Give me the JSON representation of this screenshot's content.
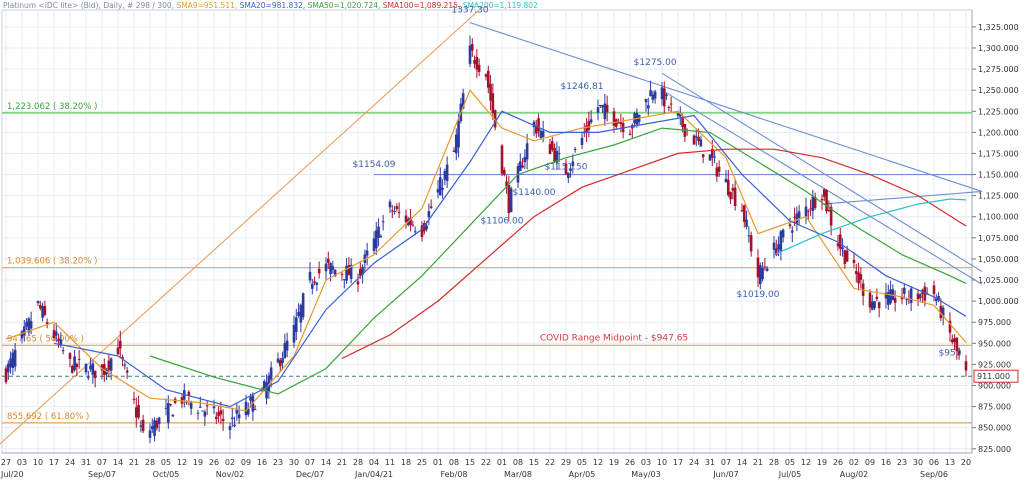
{
  "header": {
    "instrument": "Platinum <IDC lite> (Bid), Daily, # 298 / 300,",
    "sma9": "SMA9=951.511,",
    "sma20": "SMA20=981.832,",
    "sma50": "SMA50=1,020.724,",
    "sma100": "SMA100=1,089.215,",
    "sma200": "SMA200=1,119.802"
  },
  "colors": {
    "price_up": "#2b3a9e",
    "price_down": "#a1122c",
    "sma9": "#e69a2e",
    "sma20": "#3a5fd0",
    "sma50": "#39a43a",
    "sma100": "#d42a2a",
    "sma200": "#29c1c9",
    "fib_green": "#57c957",
    "fib_orange": "#e8a15d",
    "trend_blue": "#6e8fd6",
    "midpoint": "#e06a6a",
    "background": "#ffffff",
    "grid": "#e6ecf3"
  },
  "chart_data": {
    "type": "candlestick",
    "title": "",
    "y_axis": {
      "min": 820,
      "max": 1345,
      "ticks": [
        "825.000",
        "850.000",
        "875.000",
        "900.000",
        "925.000",
        "950.000",
        "975.000",
        "1,000.000",
        "1,025.000",
        "1,050.000",
        "1,075.000",
        "1,100.000",
        "1,125.000",
        "1,150.000",
        "1,175.000",
        "1,200.000",
        "1,225.000",
        "1,250.000",
        "1,275.000",
        "1,300.000",
        "1,325.000"
      ],
      "tick_values": [
        825,
        850,
        875,
        900,
        925,
        950,
        975,
        1000,
        1025,
        1050,
        1075,
        1100,
        1125,
        1150,
        1175,
        1200,
        1225,
        1250,
        1275,
        1300,
        1325
      ]
    },
    "x_axis": {
      "start_date": "2020-07-27",
      "end_date": "2021-09-20",
      "day_labels": [
        {
          "date": "2020-07-27",
          "label": "27"
        },
        {
          "date": "2020-08-03",
          "label": "03"
        },
        {
          "date": "2020-08-10",
          "label": "10"
        },
        {
          "date": "2020-08-17",
          "label": "17"
        },
        {
          "date": "2020-08-24",
          "label": "24"
        },
        {
          "date": "2020-08-31",
          "label": "31"
        },
        {
          "date": "2020-09-07",
          "label": "07"
        },
        {
          "date": "2020-09-14",
          "label": "14"
        },
        {
          "date": "2020-09-21",
          "label": "21"
        },
        {
          "date": "2020-09-28",
          "label": "28"
        },
        {
          "date": "2020-10-05",
          "label": "05"
        },
        {
          "date": "2020-10-12",
          "label": "12"
        },
        {
          "date": "2020-10-19",
          "label": "19"
        },
        {
          "date": "2020-10-26",
          "label": "26"
        },
        {
          "date": "2020-11-02",
          "label": "02"
        },
        {
          "date": "2020-11-09",
          "label": "09"
        },
        {
          "date": "2020-11-16",
          "label": "16"
        },
        {
          "date": "2020-11-23",
          "label": "23"
        },
        {
          "date": "2020-11-30",
          "label": "30"
        },
        {
          "date": "2020-12-07",
          "label": "07"
        },
        {
          "date": "2020-12-14",
          "label": "14"
        },
        {
          "date": "2020-12-21",
          "label": "21"
        },
        {
          "date": "2020-12-28",
          "label": "28"
        },
        {
          "date": "2021-01-04",
          "label": "04"
        },
        {
          "date": "2021-01-11",
          "label": "11"
        },
        {
          "date": "2021-01-18",
          "label": "18"
        },
        {
          "date": "2021-01-25",
          "label": "25"
        },
        {
          "date": "2021-02-01",
          "label": "01"
        },
        {
          "date": "2021-02-08",
          "label": "08"
        },
        {
          "date": "2021-02-15",
          "label": "15"
        },
        {
          "date": "2021-02-22",
          "label": "22"
        },
        {
          "date": "2021-03-01",
          "label": "01"
        },
        {
          "date": "2021-03-08",
          "label": "08"
        },
        {
          "date": "2021-03-15",
          "label": "15"
        },
        {
          "date": "2021-03-22",
          "label": "22"
        },
        {
          "date": "2021-03-29",
          "label": "29"
        },
        {
          "date": "2021-04-05",
          "label": "05"
        },
        {
          "date": "2021-04-12",
          "label": "12"
        },
        {
          "date": "2021-04-19",
          "label": "19"
        },
        {
          "date": "2021-04-26",
          "label": "26"
        },
        {
          "date": "2021-05-03",
          "label": "03"
        },
        {
          "date": "2021-05-10",
          "label": "10"
        },
        {
          "date": "2021-05-17",
          "label": "17"
        },
        {
          "date": "2021-05-24",
          "label": "24"
        },
        {
          "date": "2021-05-31",
          "label": "31"
        },
        {
          "date": "2021-06-07",
          "label": "07"
        },
        {
          "date": "2021-06-14",
          "label": "14"
        },
        {
          "date": "2021-06-21",
          "label": "21"
        },
        {
          "date": "2021-06-28",
          "label": "28"
        },
        {
          "date": "2021-07-05",
          "label": "05"
        },
        {
          "date": "2021-07-12",
          "label": "12"
        },
        {
          "date": "2021-07-19",
          "label": "19"
        },
        {
          "date": "2021-07-26",
          "label": "26"
        },
        {
          "date": "2021-08-02",
          "label": "02"
        },
        {
          "date": "2021-08-09",
          "label": "09"
        },
        {
          "date": "2021-08-16",
          "label": "16"
        },
        {
          "date": "2021-08-23",
          "label": "23"
        },
        {
          "date": "2021-08-30",
          "label": "30"
        },
        {
          "date": "2021-09-06",
          "label": "06"
        },
        {
          "date": "2021-09-13",
          "label": "13"
        },
        {
          "date": "2021-09-20",
          "label": "20"
        }
      ],
      "month_labels": [
        {
          "date": "2020-07-20",
          "label": "Jul/20"
        },
        {
          "date": "2020-09-07",
          "label": "Sep/07"
        },
        {
          "date": "2020-10-05",
          "label": "Oct/05"
        },
        {
          "date": "2020-11-02",
          "label": "Nov/02"
        },
        {
          "date": "2020-12-07",
          "label": "Dec/07"
        },
        {
          "date": "2021-01-04",
          "label": "Jan/04/21"
        },
        {
          "date": "2021-02-08",
          "label": "Feb/08"
        },
        {
          "date": "2021-03-08",
          "label": "Mar/08"
        },
        {
          "date": "2021-04-05",
          "label": "Apr/05"
        },
        {
          "date": "2021-05-03",
          "label": "May/03"
        },
        {
          "date": "2021-06-07",
          "label": "Jun/07"
        },
        {
          "date": "2021-07-05",
          "label": "Jul/05"
        },
        {
          "date": "2021-08-02",
          "label": "Aug/02"
        },
        {
          "date": "2021-09-06",
          "label": "Sep/06"
        }
      ]
    },
    "price_anchors": [
      {
        "date": "2020-07-27",
        "close": 915
      },
      {
        "date": "2020-08-10",
        "close": 995
      },
      {
        "date": "2020-08-24",
        "close": 925
      },
      {
        "date": "2020-09-07",
        "close": 915
      },
      {
        "date": "2020-09-14",
        "close": 945
      },
      {
        "date": "2020-09-25",
        "close": 840
      },
      {
        "date": "2020-10-12",
        "close": 885
      },
      {
        "date": "2020-10-26",
        "close": 865
      },
      {
        "date": "2020-11-02",
        "close": 855
      },
      {
        "date": "2020-11-16",
        "close": 890
      },
      {
        "date": "2020-11-30",
        "close": 965
      },
      {
        "date": "2020-12-07",
        "close": 1025
      },
      {
        "date": "2020-12-14",
        "close": 1040
      },
      {
        "date": "2020-12-28",
        "close": 1030
      },
      {
        "date": "2021-01-11",
        "close": 1110
      },
      {
        "date": "2021-01-25",
        "close": 1085
      },
      {
        "date": "2021-02-08",
        "close": 1175
      },
      {
        "date": "2021-02-15",
        "close": 1295
      },
      {
        "date": "2021-02-22",
        "close": 1270
      },
      {
        "date": "2021-03-04",
        "close": 1115
      },
      {
        "date": "2021-03-15",
        "close": 1210
      },
      {
        "date": "2021-03-29",
        "close": 1155
      },
      {
        "date": "2021-04-12",
        "close": 1230
      },
      {
        "date": "2021-04-26",
        "close": 1205
      },
      {
        "date": "2021-05-07",
        "close": 1255
      },
      {
        "date": "2021-05-17",
        "close": 1215
      },
      {
        "date": "2021-05-31",
        "close": 1170
      },
      {
        "date": "2021-06-14",
        "close": 1110
      },
      {
        "date": "2021-06-21",
        "close": 1030
      },
      {
        "date": "2021-07-05",
        "close": 1090
      },
      {
        "date": "2021-07-19",
        "close": 1130
      },
      {
        "date": "2021-07-26",
        "close": 1070
      },
      {
        "date": "2021-08-09",
        "close": 1000
      },
      {
        "date": "2021-08-23",
        "close": 1005
      },
      {
        "date": "2021-09-06",
        "close": 1010
      },
      {
        "date": "2021-09-13",
        "close": 960
      },
      {
        "date": "2021-09-20",
        "close": 911
      }
    ],
    "sma_series": [
      {
        "name": "SMA9",
        "color_key": "sma9",
        "points": [
          [
            "2020-07-27",
            955
          ],
          [
            "2020-08-17",
            975
          ],
          [
            "2020-09-07",
            920
          ],
          [
            "2020-09-28",
            885
          ],
          [
            "2020-10-19",
            880
          ],
          [
            "2020-11-09",
            870
          ],
          [
            "2020-11-30",
            935
          ],
          [
            "2020-12-14",
            1025
          ],
          [
            "2021-01-04",
            1055
          ],
          [
            "2021-01-25",
            1110
          ],
          [
            "2021-02-15",
            1250
          ],
          [
            "2021-03-01",
            1205
          ],
          [
            "2021-03-15",
            1190
          ],
          [
            "2021-04-05",
            1205
          ],
          [
            "2021-04-26",
            1215
          ],
          [
            "2021-05-17",
            1225
          ],
          [
            "2021-06-07",
            1170
          ],
          [
            "2021-06-21",
            1080
          ],
          [
            "2021-07-12",
            1100
          ],
          [
            "2021-08-02",
            1015
          ],
          [
            "2021-08-23",
            1005
          ],
          [
            "2021-09-06",
            995
          ],
          [
            "2021-09-20",
            951
          ]
        ]
      },
      {
        "name": "SMA20",
        "color_key": "sma20",
        "points": [
          [
            "2020-08-17",
            950
          ],
          [
            "2020-09-14",
            935
          ],
          [
            "2020-10-05",
            895
          ],
          [
            "2020-11-02",
            875
          ],
          [
            "2020-11-23",
            905
          ],
          [
            "2020-12-14",
            990
          ],
          [
            "2021-01-04",
            1045
          ],
          [
            "2021-01-25",
            1085
          ],
          [
            "2021-02-15",
            1165
          ],
          [
            "2021-03-01",
            1225
          ],
          [
            "2021-03-22",
            1200
          ],
          [
            "2021-04-12",
            1200
          ],
          [
            "2021-05-03",
            1210
          ],
          [
            "2021-05-24",
            1220
          ],
          [
            "2021-06-14",
            1150
          ],
          [
            "2021-07-05",
            1095
          ],
          [
            "2021-07-26",
            1070
          ],
          [
            "2021-08-16",
            1030
          ],
          [
            "2021-09-06",
            1005
          ],
          [
            "2021-09-20",
            982
          ]
        ]
      },
      {
        "name": "SMA50",
        "color_key": "sma50",
        "points": [
          [
            "2020-09-28",
            935
          ],
          [
            "2020-10-26",
            910
          ],
          [
            "2020-11-23",
            890
          ],
          [
            "2020-12-14",
            920
          ],
          [
            "2021-01-04",
            980
          ],
          [
            "2021-01-25",
            1030
          ],
          [
            "2021-02-15",
            1090
          ],
          [
            "2021-03-08",
            1150
          ],
          [
            "2021-03-29",
            1170
          ],
          [
            "2021-04-19",
            1185
          ],
          [
            "2021-05-10",
            1205
          ],
          [
            "2021-05-31",
            1200
          ],
          [
            "2021-06-21",
            1165
          ],
          [
            "2021-07-12",
            1130
          ],
          [
            "2021-08-02",
            1090
          ],
          [
            "2021-08-23",
            1055
          ],
          [
            "2021-09-13",
            1030
          ],
          [
            "2021-09-20",
            1021
          ]
        ]
      },
      {
        "name": "SMA100",
        "color_key": "sma100",
        "points": [
          [
            "2020-12-21",
            932
          ],
          [
            "2021-01-11",
            960
          ],
          [
            "2021-02-01",
            1000
          ],
          [
            "2021-02-22",
            1050
          ],
          [
            "2021-03-15",
            1100
          ],
          [
            "2021-04-05",
            1135
          ],
          [
            "2021-04-26",
            1155
          ],
          [
            "2021-05-17",
            1175
          ],
          [
            "2021-06-07",
            1180
          ],
          [
            "2021-06-28",
            1180
          ],
          [
            "2021-07-19",
            1170
          ],
          [
            "2021-08-09",
            1150
          ],
          [
            "2021-08-30",
            1125
          ],
          [
            "2021-09-20",
            1089
          ]
        ]
      },
      {
        "name": "SMA200",
        "color_key": "sma200",
        "points": [
          [
            "2021-06-28",
            1055
          ],
          [
            "2021-07-19",
            1080
          ],
          [
            "2021-08-09",
            1100
          ],
          [
            "2021-08-30",
            1115
          ],
          [
            "2021-09-13",
            1121
          ],
          [
            "2021-09-20",
            1120
          ]
        ]
      }
    ],
    "horizontal_levels": [
      {
        "value": 1223.062,
        "label": "1,223.062 ( 38.20% )",
        "color_key": "fib_green",
        "style": "solid"
      },
      {
        "value": 1039.606,
        "label": "1,039.606 ( 38.20% )",
        "color_key": "fib_orange",
        "style": "solid"
      },
      {
        "value": 947.65,
        "label": "947.65 ( 50.00% )",
        "color_key": "fib_orange",
        "style": "solid"
      },
      {
        "value": 855.692,
        "label": "855.692 ( 61.80% )",
        "color_key": "fib_orange",
        "style": "solid"
      },
      {
        "value": 1150,
        "label": "",
        "color_key": "trend_blue",
        "style": "solid",
        "from": "2021-01-04"
      }
    ],
    "current_price": {
      "value": 911,
      "label": "911.000"
    },
    "midpoint_label": "COVID Range Midpoint - $947.65",
    "annotations": [
      {
        "label": "1337.30",
        "date": "2021-02-15",
        "value": 1337.3
      },
      {
        "label": "$1154.09",
        "date": "2021-01-04",
        "value": 1154.09
      },
      {
        "label": "$1106.00",
        "date": "2021-03-01",
        "value": 1106
      },
      {
        "label": "$1140.00",
        "date": "2021-03-15",
        "value": 1140
      },
      {
        "label": "$1151.50",
        "date": "2021-03-29",
        "value": 1151.5
      },
      {
        "label": "$1246.81",
        "date": "2021-04-05",
        "value": 1246.81
      },
      {
        "label": "$1275.00",
        "date": "2021-05-07",
        "value": 1275
      },
      {
        "label": "$1019.00",
        "date": "2021-06-21",
        "value": 1019
      },
      {
        "label": "$950",
        "date": "2021-09-13",
        "value": 950
      }
    ],
    "trendlines": [
      {
        "name": "uptrend",
        "color_key": "fib_orange",
        "from": [
          "2020-07-22",
          825
        ],
        "to": [
          "2021-02-19",
          1345
        ]
      },
      {
        "name": "downtrend-main",
        "color_key": "trend_blue",
        "from": [
          "2021-02-15",
          1330
        ],
        "to": [
          "2021-09-27",
          1130
        ]
      },
      {
        "name": "downtrend-2",
        "color_key": "trend_blue",
        "from": [
          "2021-05-10",
          1270
        ],
        "to": [
          "2021-09-27",
          1035
        ]
      },
      {
        "name": "downtrend-3",
        "color_key": "trend_blue",
        "from": [
          "2021-05-10",
          1250
        ],
        "to": [
          "2021-09-27",
          1020
        ]
      },
      {
        "name": "channel-top",
        "color_key": "trend_blue",
        "from": [
          "2021-07-19",
          1115
        ],
        "to": [
          "2021-09-27",
          1130
        ]
      }
    ]
  }
}
